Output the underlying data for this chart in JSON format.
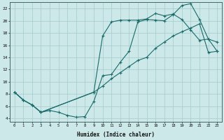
{
  "xlabel": "Humidex (Indice chaleur)",
  "bg_color": "#cce8e8",
  "line_color": "#1a6b6b",
  "grid_color": "#aacece",
  "xlim": [
    -0.5,
    23.5
  ],
  "ylim": [
    3.5,
    23
  ],
  "xticks": [
    0,
    1,
    2,
    3,
    4,
    5,
    6,
    7,
    8,
    9,
    10,
    11,
    12,
    13,
    14,
    15,
    16,
    17,
    18,
    19,
    20,
    21,
    22,
    23
  ],
  "yticks": [
    4,
    6,
    8,
    10,
    12,
    14,
    16,
    18,
    20,
    22
  ],
  "curve1_x": [
    0,
    1,
    2,
    3,
    4,
    5,
    6,
    7,
    8,
    9,
    10,
    11,
    12,
    13,
    14,
    15,
    16,
    17,
    18,
    19,
    20,
    21,
    22,
    23
  ],
  "curve1_y": [
    8.3,
    7.0,
    6.2,
    5.0,
    5.3,
    5.0,
    4.5,
    4.2,
    4.3,
    6.8,
    11.0,
    11.2,
    13.2,
    15.0,
    19.8,
    20.2,
    20.1,
    20.0,
    21.0,
    22.5,
    22.8,
    20.2,
    17.0,
    16.5
  ],
  "curve2_x": [
    0,
    1,
    2,
    3,
    9,
    10,
    11,
    12,
    13,
    14,
    15,
    16,
    17,
    18,
    19,
    20,
    21,
    22,
    23
  ],
  "curve2_y": [
    8.3,
    7.0,
    6.2,
    5.0,
    8.3,
    17.5,
    19.8,
    20.1,
    20.1,
    20.1,
    20.3,
    21.2,
    20.8,
    21.1,
    20.2,
    18.5,
    16.8,
    17.0,
    15.0
  ],
  "curve3_x": [
    0,
    1,
    2,
    3,
    9,
    10,
    11,
    12,
    13,
    14,
    15,
    16,
    17,
    18,
    19,
    20,
    21,
    22,
    23
  ],
  "curve3_y": [
    8.3,
    7.0,
    6.2,
    5.0,
    8.3,
    9.3,
    10.5,
    11.5,
    12.5,
    13.5,
    14.0,
    15.5,
    16.5,
    17.5,
    18.2,
    18.8,
    19.5,
    14.8,
    15.0
  ]
}
